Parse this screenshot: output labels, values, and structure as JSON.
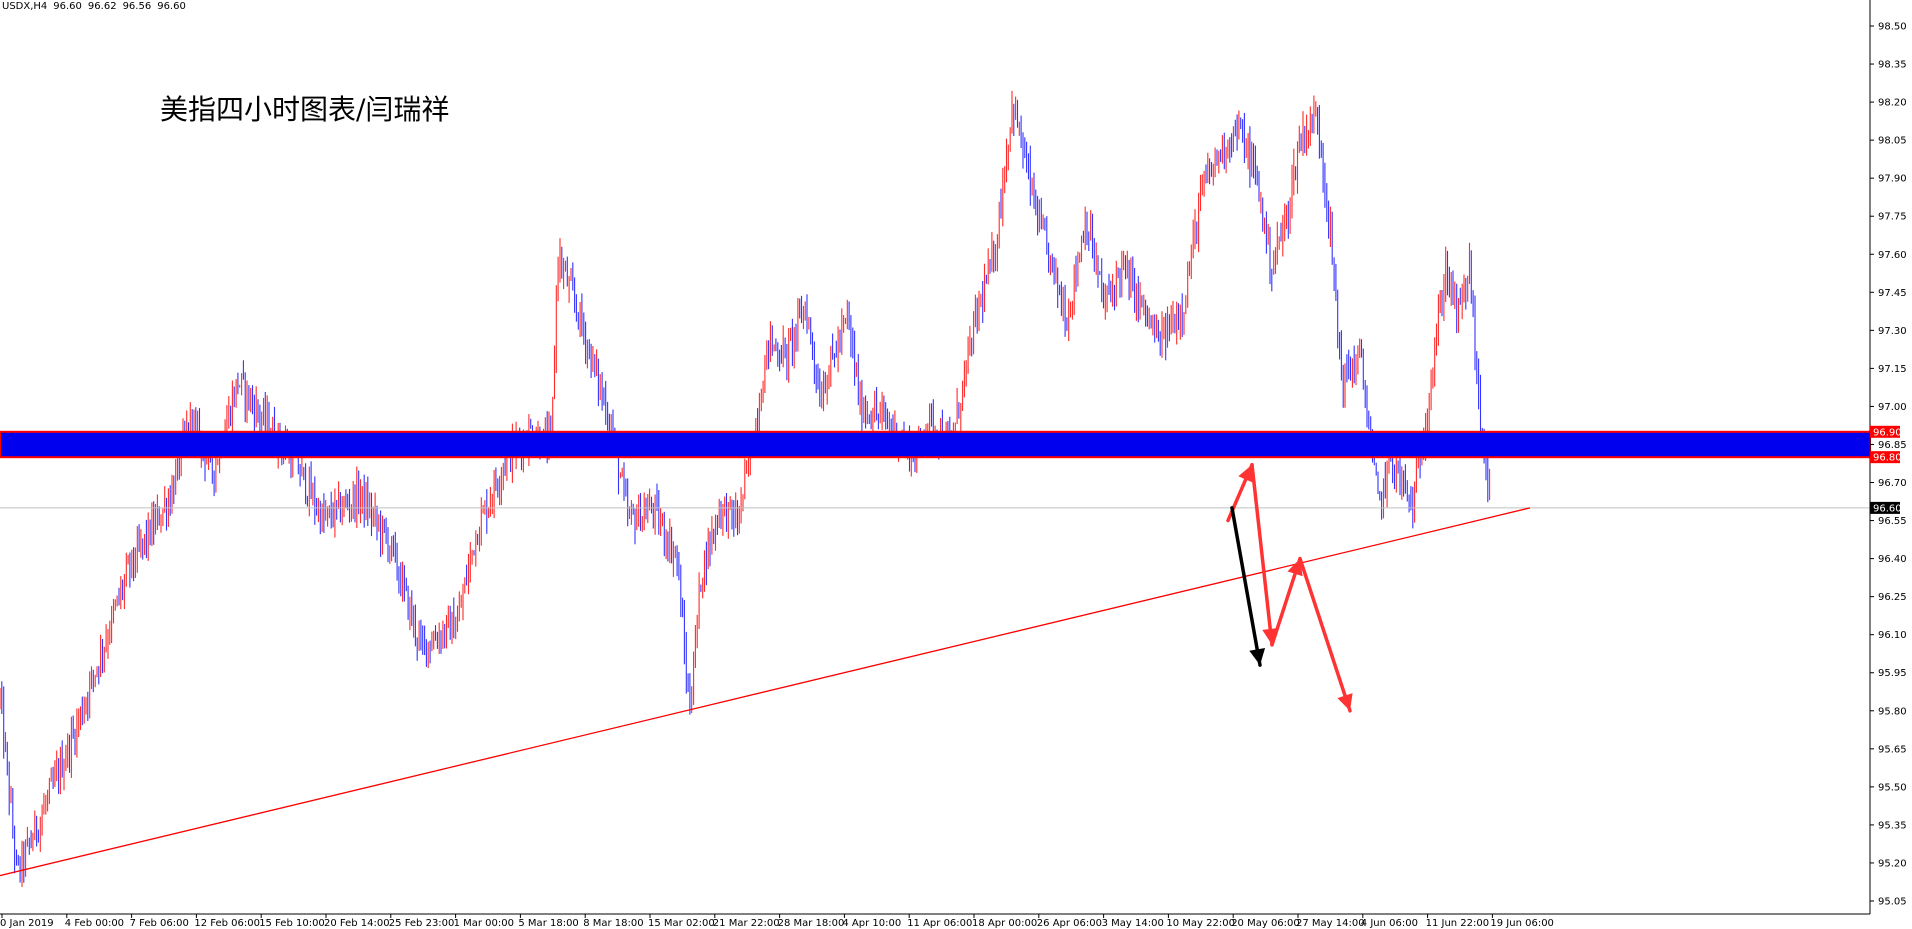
{
  "header": {
    "symbol": "USDX,H4",
    "open": "96.60",
    "high": "96.62",
    "low": "96.56",
    "close": "96.60"
  },
  "annotation_title": "美指四小时图表/闫瑞祥",
  "colors": {
    "bull": "#ff2a2a",
    "bear": "#3333ff",
    "zone_fill": "#0000ee",
    "zone_border": "#ff0000",
    "trendline": "#ff0000",
    "arrow_red": "#ff3333",
    "arrow_black": "#000000",
    "axis": "#000000",
    "price_line": "#c0c0c0"
  },
  "chart_data": {
    "type": "candlestick",
    "symbol": "USDX",
    "timeframe": "H4",
    "ylim": [
      95.0,
      98.6
    ],
    "yticks": [
      "98.50",
      "98.35",
      "98.20",
      "98.05",
      "97.90",
      "97.75",
      "97.60",
      "97.45",
      "97.30",
      "97.15",
      "97.00",
      "96.85",
      "96.70",
      "96.55",
      "96.40",
      "96.25",
      "96.10",
      "95.95",
      "95.80",
      "95.65",
      "95.50",
      "95.35",
      "95.20",
      "95.05"
    ],
    "xticks": [
      "0 Jan 2019",
      "4 Feb 00:00",
      "7 Feb 06:00",
      "12 Feb 06:00",
      "15 Feb 10:00",
      "20 Feb 14:00",
      "25 Feb 23:00",
      "1 Mar 00:00",
      "5 Mar 18:00",
      "8 Mar 18:00",
      "15 Mar 02:00",
      "21 Mar 22:00",
      "28 Mar 18:00",
      "4 Apr 10:00",
      "11 Apr 06:00",
      "18 Apr 00:00",
      "26 Apr 06:00",
      "3 May 14:00",
      "10 May 22:00",
      "20 May 06:00",
      "27 May 14:00",
      "4 Jun 06:00",
      "11 Jun 22:00",
      "19 Jun 06:00"
    ],
    "price_keypoints": [
      [
        0,
        95.85
      ],
      [
        14,
        95.15
      ],
      [
        60,
        95.7
      ],
      [
        105,
        96.35
      ],
      [
        140,
        96.65
      ],
      [
        155,
        96.95
      ],
      [
        175,
        96.75
      ],
      [
        195,
        97.1
      ],
      [
        215,
        96.95
      ],
      [
        240,
        96.8
      ],
      [
        265,
        96.55
      ],
      [
        295,
        96.65
      ],
      [
        320,
        96.45
      ],
      [
        345,
        96.05
      ],
      [
        375,
        96.15
      ],
      [
        390,
        96.5
      ],
      [
        415,
        96.8
      ],
      [
        435,
        96.9
      ],
      [
        452,
        96.85
      ],
      [
        457,
        97.6
      ],
      [
        475,
        97.35
      ],
      [
        490,
        97.1
      ],
      [
        500,
        96.95
      ],
      [
        515,
        96.55
      ],
      [
        535,
        96.6
      ],
      [
        555,
        96.4
      ],
      [
        565,
        95.8
      ],
      [
        575,
        96.35
      ],
      [
        590,
        96.6
      ],
      [
        605,
        96.55
      ],
      [
        620,
        96.95
      ],
      [
        630,
        97.25
      ],
      [
        645,
        97.2
      ],
      [
        660,
        97.4
      ],
      [
        672,
        97.05
      ],
      [
        695,
        97.35
      ],
      [
        705,
        97.0
      ],
      [
        725,
        96.95
      ],
      [
        750,
        96.8
      ],
      [
        760,
        96.95
      ],
      [
        780,
        96.85
      ],
      [
        800,
        97.35
      ],
      [
        815,
        97.6
      ],
      [
        830,
        98.2
      ],
      [
        850,
        97.75
      ],
      [
        865,
        97.5
      ],
      [
        875,
        97.35
      ],
      [
        890,
        97.75
      ],
      [
        905,
        97.4
      ],
      [
        920,
        97.55
      ],
      [
        935,
        97.4
      ],
      [
        950,
        97.25
      ],
      [
        970,
        97.4
      ],
      [
        985,
        97.85
      ],
      [
        1000,
        98.0
      ],
      [
        1015,
        98.1
      ],
      [
        1030,
        97.9
      ],
      [
        1042,
        97.55
      ],
      [
        1055,
        97.75
      ],
      [
        1065,
        98.05
      ],
      [
        1080,
        98.15
      ],
      [
        1090,
        97.7
      ],
      [
        1100,
        97.1
      ],
      [
        1115,
        97.2
      ],
      [
        1130,
        96.6
      ],
      [
        1140,
        96.8
      ],
      [
        1158,
        96.6
      ],
      [
        1170,
        97.0
      ],
      [
        1185,
        97.55
      ],
      [
        1195,
        97.35
      ],
      [
        1205,
        97.55
      ],
      [
        1212,
        97.0
      ],
      [
        1222,
        96.6
      ]
    ],
    "series": [
      {
        "name": "96.90",
        "values": [
          96.9
        ]
      },
      {
        "name": "96.80",
        "values": [
          96.8
        ]
      },
      {
        "name": "96.60",
        "values": [
          96.6
        ]
      }
    ],
    "resistance_zone": [
      96.8,
      96.9
    ],
    "current_price": 96.6,
    "trendline": [
      [
        0,
        95.15
      ],
      [
        1530,
        96.6
      ]
    ],
    "projection_red": [
      [
        1228,
        96.55
      ],
      [
        1252,
        96.77
      ],
      [
        1272,
        96.06
      ],
      [
        1300,
        96.4
      ],
      [
        1350,
        95.8
      ]
    ],
    "projection_black": [
      [
        1232,
        96.6
      ],
      [
        1260,
        95.98
      ]
    ]
  }
}
